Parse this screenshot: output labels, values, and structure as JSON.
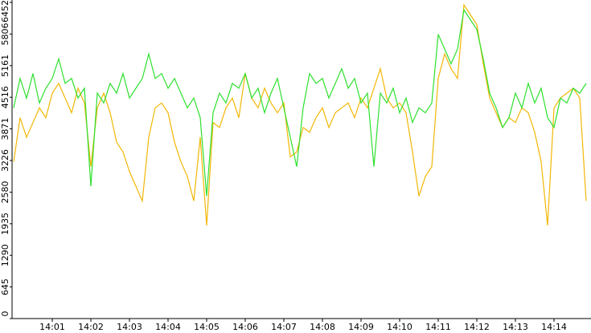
{
  "chart_data": {
    "type": "line",
    "categories": [
      null,
      null,
      null,
      null,
      null,
      null,
      "14:01",
      null,
      null,
      null,
      null,
      null,
      "14:02",
      null,
      null,
      null,
      null,
      null,
      "14:03",
      null,
      null,
      null,
      null,
      null,
      "14:04",
      null,
      null,
      null,
      null,
      null,
      "14:05",
      null,
      null,
      null,
      null,
      null,
      "14:06",
      null,
      null,
      null,
      null,
      null,
      "14:07",
      null,
      null,
      null,
      null,
      null,
      "14:08",
      null,
      null,
      null,
      null,
      null,
      "14:09",
      null,
      null,
      null,
      null,
      null,
      "14:10",
      null,
      null,
      null,
      null,
      null,
      "14:11",
      null,
      null,
      null,
      null,
      null,
      "14:12",
      null,
      null,
      null,
      null,
      null,
      "14:13",
      null,
      null,
      null,
      null,
      null,
      "14:14",
      null,
      null,
      null,
      null,
      null
    ],
    "series": [
      {
        "color": "#f2b705",
        "values": [
          3200,
          4100,
          3700,
          4000,
          4300,
          4100,
          4600,
          4800,
          4500,
          4200,
          4700,
          4400,
          3100,
          4300,
          4600,
          4200,
          3600,
          3400,
          3000,
          2700,
          2400,
          3700,
          4300,
          4400,
          4200,
          3600,
          3200,
          2900,
          2400,
          3700,
          1900,
          4000,
          3900,
          4300,
          4500,
          4100,
          5000,
          4500,
          4300,
          4700,
          4400,
          4200,
          4400,
          3300,
          3400,
          3900,
          3800,
          4100,
          4300,
          3900,
          4200,
          4300,
          4400,
          4100,
          4500,
          4300,
          4700,
          5100,
          4500,
          4300,
          4400,
          4200,
          3400,
          2500,
          2900,
          3100,
          4900,
          5400,
          5100,
          4900,
          6400,
          6200,
          6000,
          5200,
          4500,
          4200,
          3900,
          4100,
          4000,
          4300,
          4200,
          3800,
          3200,
          1900,
          4300,
          4500,
          4600,
          4700,
          4500,
          2400
        ]
      },
      {
        "color": "#2ee02e",
        "values": [
          4300,
          4900,
          4500,
          5000,
          4400,
          4700,
          4900,
          5300,
          4800,
          4900,
          4500,
          4700,
          2700,
          4600,
          4400,
          4800,
          4600,
          5000,
          4500,
          4700,
          4900,
          5400,
          4900,
          5000,
          4700,
          4900,
          4600,
          4300,
          4500,
          4100,
          2500,
          4200,
          4600,
          4400,
          4800,
          4700,
          5000,
          4500,
          4700,
          4200,
          4600,
          4900,
          4300,
          3700,
          3100,
          4300,
          5000,
          4800,
          4900,
          4500,
          4800,
          5100,
          4700,
          4900,
          4400,
          4600,
          3100,
          4600,
          4400,
          4700,
          4200,
          4500,
          4000,
          4300,
          4200,
          4400,
          5800,
          5500,
          5200,
          5500,
          6300,
          6100,
          5900,
          5300,
          4600,
          4300,
          3900,
          4100,
          4600,
          4300,
          4800,
          4400,
          4700,
          4100,
          3900,
          4500,
          4400,
          4700,
          4600,
          4800
        ]
      }
    ],
    "ylim": [
      0,
      6452
    ],
    "yticks": [
      0,
      645,
      1290,
      1935,
      2580,
      3226,
      3871,
      4516,
      5161,
      5806,
      6452
    ]
  }
}
